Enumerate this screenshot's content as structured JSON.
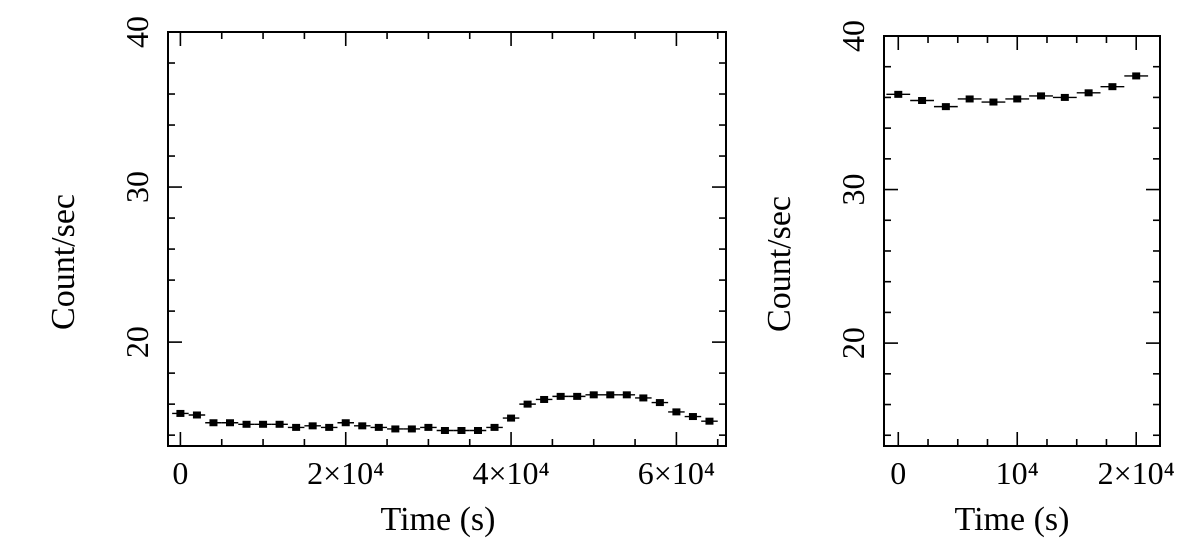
{
  "chart_data": [
    {
      "type": "scatter",
      "xlabel": "Time (s)",
      "ylabel": "Count/sec",
      "xlim": [
        -1500,
        66000
      ],
      "ylim": [
        13.3,
        40
      ],
      "xticks": [
        {
          "value": 0,
          "label": "0"
        },
        {
          "value": 20000,
          "label": "2×10⁴"
        },
        {
          "value": 40000,
          "label": "4×10⁴"
        },
        {
          "value": 60000,
          "label": "6×10⁴"
        }
      ],
      "yticks": [
        {
          "value": 20,
          "label": "20"
        },
        {
          "value": 30,
          "label": "30"
        },
        {
          "value": 40,
          "label": "40"
        }
      ],
      "x_error": 1000,
      "series": [
        {
          "x": [
            0,
            2000,
            4000,
            6000,
            8000,
            10000,
            12000,
            14000,
            16000,
            18000,
            20000,
            22000,
            24000,
            26000,
            28000,
            30000,
            32000,
            34000,
            36000,
            38000,
            40000,
            42000,
            44000,
            46000,
            48000,
            50000,
            52000,
            54000,
            56000,
            58000,
            60000,
            62000,
            64000
          ],
          "y": [
            15.4,
            15.3,
            14.8,
            14.8,
            14.7,
            14.7,
            14.7,
            14.5,
            14.6,
            14.5,
            14.8,
            14.6,
            14.5,
            14.4,
            14.4,
            14.5,
            14.3,
            14.3,
            14.3,
            14.5,
            15.1,
            16.0,
            16.3,
            16.5,
            16.5,
            16.6,
            16.6,
            16.6,
            16.4,
            16.1,
            15.5,
            15.2,
            14.9
          ]
        }
      ],
      "grid": false
    },
    {
      "type": "scatter",
      "xlabel": "Time (s)",
      "ylabel": "Count/sec",
      "xlim": [
        -1200,
        22000
      ],
      "ylim": [
        13.3,
        40
      ],
      "xticks": [
        {
          "value": 0,
          "label": "0"
        },
        {
          "value": 10000,
          "label": "10⁴"
        },
        {
          "value": 20000,
          "label": "2×10⁴"
        }
      ],
      "yticks": [
        {
          "value": 20,
          "label": "20"
        },
        {
          "value": 30,
          "label": "30"
        },
        {
          "value": 40,
          "label": "40"
        }
      ],
      "x_error": 1000,
      "series": [
        {
          "x": [
            0,
            2000,
            4000,
            6000,
            8000,
            10000,
            12000,
            14000,
            16000,
            18000,
            20000
          ],
          "y": [
            36.2,
            35.8,
            35.4,
            35.9,
            35.7,
            35.9,
            36.1,
            36.0,
            36.3,
            36.7,
            37.4
          ]
        }
      ],
      "grid": false
    }
  ]
}
